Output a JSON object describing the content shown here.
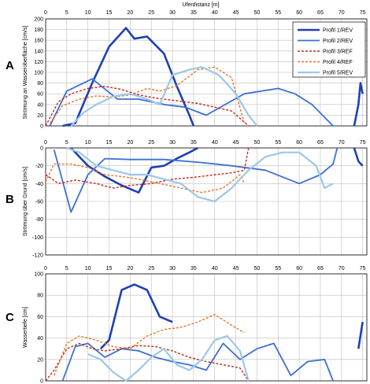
{
  "x_axis_label": "Uferdistanz [m]",
  "x_ticks": [
    0,
    5,
    10,
    15,
    20,
    25,
    30,
    35,
    40,
    45,
    50,
    55,
    60,
    65,
    70,
    75
  ],
  "legend": [
    "Profil 1/REV",
    "Profil 2/REV",
    "Profil 3/REF",
    "Profil 4/REF",
    "Profil 5/REV"
  ],
  "styles": [
    {
      "color": "#1f3fb5",
      "width": 2.6,
      "dash": ""
    },
    {
      "color": "#3d6fd6",
      "width": 1.8,
      "dash": ""
    },
    {
      "color": "#c0281c",
      "width": 1.4,
      "dash": "3,2"
    },
    {
      "color": "#e3762a",
      "width": 1.4,
      "dash": "3,2"
    },
    {
      "color": "#9cc7ea",
      "width": 2.2,
      "dash": ""
    }
  ],
  "chart_data": [
    {
      "type": "line",
      "panel": "A",
      "ylabel": "Strömung an Wasseroberfläche [cm/s]",
      "ylim": [
        0,
        200
      ],
      "yticks": [
        0,
        20,
        40,
        60,
        80,
        100,
        120,
        140,
        160,
        180,
        200
      ],
      "x_ticks_top": true,
      "legend_position": "top-right",
      "series": [
        {
          "name": "Profil 1/REV",
          "x": [
            4,
            7,
            11,
            15,
            19,
            21,
            24,
            28,
            31,
            34,
            35
          ],
          "y": [
            0,
            5,
            80,
            148,
            183,
            163,
            167,
            135,
            75,
            20,
            0
          ]
        },
        {
          "name": "Profil 2/REV",
          "x": [
            1,
            5,
            11,
            17,
            22,
            28,
            33,
            38,
            47,
            55,
            59,
            63,
            68
          ],
          "y": [
            0,
            65,
            88,
            50,
            50,
            40,
            35,
            20,
            60,
            70,
            60,
            40,
            0
          ]
        },
        {
          "name": "Profil 3/REF",
          "x": [
            0,
            3,
            6,
            10,
            14,
            18,
            22,
            26,
            30,
            36,
            40,
            44,
            48
          ],
          "y": [
            0,
            45,
            60,
            70,
            74,
            68,
            58,
            52,
            48,
            42,
            35,
            28,
            0
          ]
        },
        {
          "name": "Profil 4/REF",
          "x": [
            1,
            4,
            8,
            12,
            16,
            20,
            24,
            27,
            31,
            36,
            40,
            44,
            47
          ],
          "y": [
            5,
            38,
            50,
            56,
            54,
            58,
            70,
            65,
            75,
            105,
            110,
            90,
            5
          ]
        },
        {
          "name": "Profil 5/REV",
          "x": [
            6,
            9,
            12,
            16,
            20,
            24,
            27,
            30,
            34,
            37,
            41,
            45,
            48,
            50
          ],
          "y": [
            0,
            25,
            40,
            55,
            60,
            50,
            40,
            95,
            105,
            110,
            95,
            60,
            20,
            0
          ]
        },
        {
          "x": [
            73,
            74,
            74.5,
            75
          ],
          "y": [
            0,
            40,
            80,
            60
          ]
        }
      ]
    },
    {
      "type": "line",
      "panel": "B",
      "ylabel": "Strömung über Grund [cm/s]",
      "ylim": [
        -120,
        0
      ],
      "yticks": [
        0,
        -20,
        -40,
        -60,
        -80,
        -100,
        -120
      ],
      "series": [
        {
          "name": "Profil 1/REV",
          "x": [
            6,
            10,
            14,
            18,
            22,
            25,
            28,
            31,
            34,
            36
          ],
          "y": [
            0,
            -20,
            -32,
            -42,
            -50,
            -22,
            -20,
            -12,
            -5,
            0
          ]
        },
        {
          "name": "Profil 2/REV",
          "x": [
            2,
            6,
            10,
            14,
            20,
            28,
            36,
            44,
            52,
            60,
            65,
            68,
            69
          ],
          "y": [
            -2,
            -72,
            -30,
            -12,
            -13,
            -13,
            -16,
            -20,
            -25,
            -40,
            -30,
            -18,
            0
          ]
        },
        {
          "name": "Profil 3/REF",
          "x": [
            0,
            3,
            7,
            12,
            16,
            20,
            25,
            30,
            35,
            40,
            44,
            47,
            48
          ],
          "y": [
            -30,
            -40,
            -36,
            -40,
            -45,
            -42,
            -40,
            -35,
            -33,
            -30,
            -28,
            -25,
            0
          ]
        },
        {
          "name": "Profil 4/REF",
          "x": [
            0,
            2,
            6,
            10,
            14,
            18,
            22,
            27,
            32,
            37,
            42,
            46,
            47
          ],
          "y": [
            -38,
            -18,
            -18,
            -22,
            -30,
            -32,
            -35,
            -40,
            -45,
            -50,
            -45,
            -30,
            -40
          ]
        },
        {
          "name": "Profil 5/REV",
          "x": [
            5,
            8,
            12,
            16,
            20,
            24,
            28,
            32,
            36,
            40,
            44,
            48,
            52,
            56,
            60,
            64,
            66,
            68
          ],
          "y": [
            0,
            -5,
            -20,
            -25,
            -30,
            -30,
            -35,
            -40,
            -55,
            -60,
            -45,
            -25,
            -10,
            -5,
            -5,
            -20,
            -45,
            -40
          ]
        },
        {
          "x": [
            73,
            74,
            75
          ],
          "y": [
            0,
            -15,
            -20
          ]
        }
      ]
    },
    {
      "type": "line",
      "panel": "C",
      "ylabel": "Wassertiefe [cm]",
      "ylim": [
        0,
        100
      ],
      "yticks": [
        0,
        20,
        40,
        60,
        80,
        100
      ],
      "series": [
        {
          "name": "Profil 1/REV",
          "x": [
            13,
            15,
            18,
            21,
            24,
            27,
            30
          ],
          "y": [
            30,
            38,
            85,
            90,
            85,
            60,
            55
          ]
        },
        {
          "name": "Profil 2/REV",
          "x": [
            4,
            7,
            10,
            14,
            18,
            22,
            26,
            30,
            34,
            38,
            42,
            46,
            50,
            54,
            58,
            62,
            66,
            68
          ],
          "y": [
            0,
            32,
            35,
            22,
            30,
            28,
            22,
            18,
            15,
            10,
            35,
            20,
            30,
            35,
            5,
            18,
            20,
            0
          ]
        },
        {
          "name": "Profil 3/REF",
          "x": [
            0,
            2,
            5,
            8,
            11,
            14,
            18,
            22,
            26,
            30,
            34,
            38,
            42,
            46,
            48
          ],
          "y": [
            0,
            10,
            30,
            35,
            30,
            28,
            30,
            33,
            32,
            28,
            22,
            18,
            15,
            12,
            0
          ]
        },
        {
          "name": "Profil 4/REF",
          "x": [
            2,
            5,
            8,
            12,
            16,
            20,
            24,
            28,
            32,
            36,
            40,
            44,
            47
          ],
          "y": [
            5,
            35,
            42,
            38,
            32,
            30,
            42,
            48,
            50,
            55,
            62,
            52,
            45
          ]
        },
        {
          "name": "Profil 5/REV",
          "x": [
            10,
            13,
            16,
            19,
            22,
            25,
            28,
            31,
            34,
            37,
            40,
            43,
            46,
            48
          ],
          "y": [
            25,
            20,
            8,
            0,
            10,
            22,
            30,
            15,
            10,
            20,
            38,
            42,
            28,
            0
          ]
        },
        {
          "x": [
            74,
            75
          ],
          "y": [
            30,
            55
          ]
        }
      ]
    }
  ]
}
